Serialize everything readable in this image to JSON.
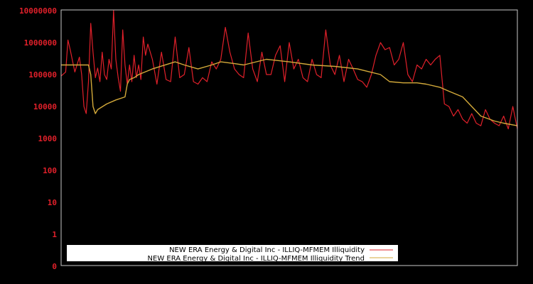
{
  "chart_data": {
    "type": "line",
    "title": "",
    "xlabel": "",
    "ylabel": "",
    "yscale": "log",
    "ylim": [
      0,
      10000000
    ],
    "grid": false,
    "legend_position": "lower-left-inside",
    "y_ticks": [
      "10000000",
      "1000000",
      "100000",
      "10000",
      "1000",
      "100",
      "10",
      "1",
      "0"
    ],
    "colors": {
      "background": "#000000",
      "axis": "#c8c8c8",
      "tick_label": "#e0202a",
      "series_illiquidity": "#e0202a",
      "series_trend": "#d4aa3a",
      "legend_bg": "#ffffff"
    },
    "series": [
      {
        "name": "NEW ERA Energy & Digital Inc - ILLIQ-MFMEM Illiquidity",
        "color": "#e0202a",
        "x": [
          0,
          0.01,
          0.015,
          0.02,
          0.03,
          0.04,
          0.045,
          0.05,
          0.055,
          0.06,
          0.065,
          0.07,
          0.075,
          0.08,
          0.085,
          0.09,
          0.095,
          0.1,
          0.105,
          0.11,
          0.115,
          0.12,
          0.125,
          0.13,
          0.135,
          0.14,
          0.145,
          0.15,
          0.155,
          0.16,
          0.165,
          0.17,
          0.175,
          0.18,
          0.185,
          0.19,
          0.2,
          0.21,
          0.22,
          0.23,
          0.24,
          0.25,
          0.26,
          0.27,
          0.28,
          0.29,
          0.3,
          0.31,
          0.32,
          0.33,
          0.34,
          0.35,
          0.36,
          0.37,
          0.38,
          0.39,
          0.4,
          0.41,
          0.42,
          0.43,
          0.44,
          0.45,
          0.46,
          0.47,
          0.48,
          0.49,
          0.5,
          0.51,
          0.52,
          0.53,
          0.54,
          0.55,
          0.56,
          0.57,
          0.58,
          0.59,
          0.6,
          0.61,
          0.62,
          0.63,
          0.64,
          0.65,
          0.66,
          0.67,
          0.68,
          0.69,
          0.7,
          0.71,
          0.72,
          0.73,
          0.74,
          0.75,
          0.76,
          0.77,
          0.78,
          0.79,
          0.8,
          0.81,
          0.82,
          0.83,
          0.84,
          0.85,
          0.86,
          0.87,
          0.88,
          0.89,
          0.9,
          0.91,
          0.92,
          0.93,
          0.94,
          0.95,
          0.96,
          0.97,
          0.98,
          0.99,
          1.0
        ],
        "values": [
          90000,
          120000,
          1200000,
          600000,
          120000,
          350000,
          100000,
          10000,
          6000,
          60000,
          4000000,
          500000,
          80000,
          160000,
          60000,
          500000,
          100000,
          70000,
          300000,
          150000,
          10000000,
          300000,
          80000,
          30000,
          2500000,
          200000,
          50000,
          200000,
          60000,
          400000,
          80000,
          200000,
          70000,
          1500000,
          400000,
          900000,
          300000,
          50000,
          500000,
          70000,
          60000,
          1500000,
          80000,
          100000,
          700000,
          60000,
          50000,
          80000,
          60000,
          250000,
          150000,
          300000,
          3000000,
          500000,
          150000,
          100000,
          80000,
          2000000,
          150000,
          60000,
          500000,
          100000,
          100000,
          400000,
          800000,
          60000,
          1000000,
          150000,
          300000,
          80000,
          60000,
          300000,
          100000,
          80000,
          2500000,
          200000,
          100000,
          400000,
          60000,
          300000,
          150000,
          70000,
          60000,
          40000,
          100000,
          400000,
          1000000,
          600000,
          700000,
          200000,
          300000,
          1000000,
          100000,
          60000,
          200000,
          150000,
          300000,
          200000,
          300000,
          400000,
          12000,
          10000,
          5000,
          8000,
          4000,
          3000,
          6000,
          3000,
          2500,
          8000,
          4000,
          3000,
          2500,
          5000,
          2000,
          10000,
          2000
        ],
        "sample_note": "approximate sample; daily series spans full plot width"
      },
      {
        "name": "NEW ERA Energy & Digital Inc - ILLIQ-MFMEM Illiquidity Trend",
        "color": "#d4aa3a",
        "x": [
          0,
          0.06,
          0.065,
          0.07,
          0.075,
          0.08,
          0.1,
          0.12,
          0.14,
          0.145,
          0.15,
          0.16,
          0.17,
          0.2,
          0.25,
          0.27,
          0.3,
          0.33,
          0.35,
          0.38,
          0.4,
          0.45,
          0.5,
          0.55,
          0.6,
          0.65,
          0.7,
          0.72,
          0.75,
          0.78,
          0.8,
          0.83,
          0.85,
          0.88,
          0.9,
          0.92,
          0.95,
          0.97,
          1.0
        ],
        "values": [
          200000,
          200000,
          100000,
          10000,
          6000,
          8000,
          12000,
          16000,
          20000,
          50000,
          70000,
          80000,
          100000,
          150000,
          250000,
          200000,
          150000,
          200000,
          250000,
          220000,
          200000,
          300000,
          250000,
          200000,
          180000,
          150000,
          100000,
          60000,
          55000,
          55000,
          50000,
          40000,
          30000,
          20000,
          10000,
          5000,
          3500,
          3000,
          2500
        ]
      }
    ]
  },
  "legend": {
    "items": [
      {
        "label": "NEW ERA Energy & Digital Inc - ILLIQ-MFMEM Illiquidity",
        "color": "#e0202a"
      },
      {
        "label": "NEW ERA Energy & Digital Inc - ILLIQ-MFMEM Illiquidity Trend",
        "color": "#d4aa3a"
      }
    ]
  }
}
